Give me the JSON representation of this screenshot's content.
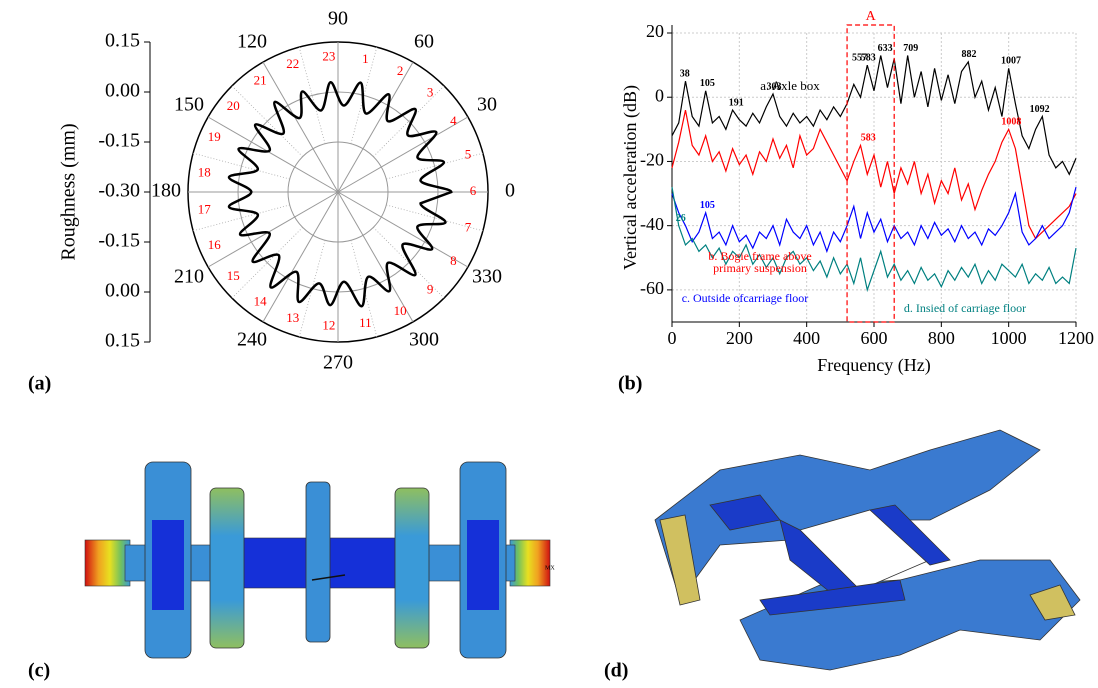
{
  "panels": [
    "(a)",
    "(b)",
    "(c)",
    "(d)"
  ],
  "fea_label": "MX",
  "chart_data": [
    {
      "type": "polar",
      "ylabel": "Roughness (mm)",
      "color": "#000000",
      "peak_color": "#ff0000",
      "grid": true,
      "x": [
        0,
        7.8,
        15.7,
        23.5,
        31.3,
        39.1,
        47.0,
        54.8,
        62.6,
        70.4,
        78.3,
        86.1,
        93.9,
        101.7,
        109.6,
        117.4,
        125.2,
        133.0,
        140.9,
        148.7,
        156.5,
        164.3,
        172.2,
        180.0,
        187.8,
        195.7,
        203.5,
        211.3,
        219.1,
        227.0,
        234.8,
        242.6,
        250.4,
        258.3,
        266.1,
        273.9,
        281.7,
        289.6,
        297.4,
        305.2,
        313.0,
        320.9,
        328.7,
        336.5,
        344.3,
        352.2
      ],
      "values": [
        0.04,
        -0.05,
        0.03,
        -0.04,
        0.045,
        -0.03,
        0.04,
        -0.04,
        0.03,
        -0.05,
        0.035,
        -0.04,
        0.03,
        -0.05,
        0.02,
        -0.05,
        0.03,
        -0.06,
        0.02,
        -0.06,
        0.025,
        -0.05,
        0.03,
        -0.04,
        0.03,
        -0.05,
        0.02,
        -0.06,
        0.03,
        -0.04,
        0.05,
        -0.03,
        0.05,
        -0.02,
        0.04,
        -0.03,
        0.05,
        -0.03,
        0.035,
        -0.04,
        0.04,
        -0.05,
        0.03,
        -0.04,
        0.035,
        -0.05
      ],
      "rlim": [
        -0.3,
        0.15
      ],
      "rticks": [
        {
          "value": -0.3,
          "label": "-0.30"
        },
        {
          "value": -0.15,
          "label": "-0.15"
        },
        {
          "value": 0.0,
          "label": "0.00"
        },
        {
          "value": 0.15,
          "label": "0.15"
        }
      ],
      "angle_ticks": [
        0,
        30,
        60,
        90,
        120,
        150,
        180,
        210,
        240,
        270,
        300,
        330
      ],
      "peak_numbers": [
        1,
        2,
        3,
        4,
        5,
        6,
        7,
        8,
        9,
        10,
        11,
        12,
        13,
        14,
        15,
        16,
        17,
        18,
        19,
        20,
        21,
        22,
        23
      ]
    },
    {
      "type": "line",
      "xlabel": "Frequency (Hz)",
      "ylabel": "Vertical acceleration (dB)",
      "grid": true,
      "xlim": [
        0,
        1200
      ],
      "xticks": [
        0,
        200,
        400,
        600,
        800,
        1000,
        1200
      ],
      "ylim": [
        -70,
        20
      ],
      "yticks": [
        -60,
        -40,
        -20,
        0,
        20
      ],
      "highlight": {
        "label": "A",
        "range": [
          520,
          660
        ],
        "color": "#ff0000"
      },
      "x": [
        0,
        20,
        40,
        60,
        80,
        100,
        120,
        140,
        160,
        180,
        200,
        220,
        240,
        260,
        280,
        300,
        320,
        340,
        360,
        380,
        400,
        420,
        440,
        460,
        480,
        500,
        520,
        540,
        560,
        580,
        600,
        620,
        640,
        660,
        680,
        700,
        720,
        740,
        760,
        780,
        800,
        820,
        840,
        860,
        880,
        900,
        920,
        940,
        960,
        980,
        1000,
        1020,
        1040,
        1060,
        1080,
        1100,
        1120,
        1140,
        1160,
        1180,
        1200
      ],
      "series": [
        {
          "name": "a. Axle box",
          "color": "#000000",
          "peaks": [
            38,
            105,
            191,
            303,
            557,
            583,
            633,
            709,
            882,
            1007,
            1092
          ],
          "values": [
            -12,
            -8,
            5,
            -6,
            -9,
            2,
            -8,
            -6,
            -10,
            -4,
            -7,
            -9,
            -5,
            -8,
            -3,
            1,
            -6,
            -9,
            -5,
            -8,
            -6,
            -9,
            -4,
            -7,
            -3,
            -6,
            -2,
            4,
            0,
            10,
            2,
            13,
            3,
            12,
            -2,
            13,
            0,
            8,
            -3,
            9,
            -1,
            7,
            -2,
            8,
            11,
            0,
            5,
            -4,
            3,
            -6,
            9,
            -2,
            -12,
            -16,
            -10,
            -6,
            -18,
            -22,
            -20,
            -24,
            -19
          ]
        },
        {
          "name": "b. Bogie frame above primary suspension",
          "color": "#ff0000",
          "peaks": [
            583,
            1008
          ],
          "values": [
            -22,
            -14,
            -4,
            -15,
            -18,
            -12,
            -20,
            -17,
            -23,
            -16,
            -21,
            -18,
            -24,
            -17,
            -20,
            -13,
            -19,
            -15,
            -22,
            -12,
            -18,
            -16,
            -10,
            -14,
            -18,
            -22,
            -26,
            -20,
            -15,
            -24,
            -18,
            -28,
            -20,
            -30,
            -22,
            -27,
            -20,
            -30,
            -24,
            -33,
            -26,
            -30,
            -22,
            -32,
            -27,
            -35,
            -29,
            -24,
            -20,
            -14,
            -10,
            -16,
            -28,
            -40,
            -44,
            -42,
            -40,
            -38,
            -36,
            -34,
            -30
          ]
        },
        {
          "name": "c. Outside ofcarriage floor",
          "color": "#0000ff",
          "peaks": [
            105
          ],
          "values": [
            -30,
            -36,
            -40,
            -45,
            -42,
            -36,
            -44,
            -42,
            -46,
            -40,
            -45,
            -43,
            -47,
            -42,
            -44,
            -40,
            -46,
            -38,
            -42,
            -44,
            -40,
            -46,
            -42,
            -48,
            -42,
            -45,
            -40,
            -34,
            -44,
            -36,
            -42,
            -38,
            -45,
            -40,
            -44,
            -42,
            -46,
            -40,
            -44,
            -39,
            -43,
            -41,
            -45,
            -40,
            -44,
            -42,
            -46,
            -41,
            -43,
            -40,
            -36,
            -30,
            -42,
            -46,
            -44,
            -40,
            -44,
            -42,
            -40,
            -36,
            -28
          ]
        },
        {
          "name": "d. Insied of carriage floor",
          "color": "#008080",
          "peaks": [
            26
          ],
          "values": [
            -28,
            -40,
            -46,
            -44,
            -48,
            -46,
            -50,
            -47,
            -52,
            -48,
            -50,
            -46,
            -52,
            -49,
            -53,
            -50,
            -55,
            -50,
            -48,
            -52,
            -50,
            -54,
            -51,
            -56,
            -50,
            -55,
            -52,
            -58,
            -50,
            -60,
            -54,
            -48,
            -56,
            -52,
            -57,
            -54,
            -58,
            -53,
            -57,
            -55,
            -59,
            -54,
            -57,
            -53,
            -56,
            -52,
            -58,
            -54,
            -57,
            -52,
            -54,
            -56,
            -52,
            -58,
            -55,
            -57,
            -53,
            -58,
            -56,
            -58,
            -47
          ]
        }
      ]
    }
  ]
}
